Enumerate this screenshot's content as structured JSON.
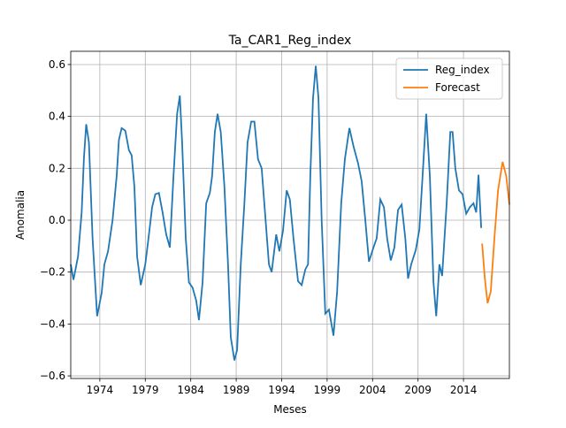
{
  "chart_data": {
    "type": "line",
    "title": "Ta_CAR1_Reg_index",
    "x_label": "Meses",
    "y_label": "Anomalia",
    "xlim": [
      1970.8,
      2019.05
    ],
    "ylim": [
      -0.61,
      0.651
    ],
    "xticks": [
      1974,
      1979,
      1984,
      1989,
      1994,
      1999,
      2004,
      2009,
      2014
    ],
    "yticks": [
      {
        "value": -0.6,
        "label": "−0.6"
      },
      {
        "value": -0.4,
        "label": "−0.4"
      },
      {
        "value": -0.2,
        "label": "−0.2"
      },
      {
        "value": 0,
        "label": "0.0"
      },
      0.2,
      0.4,
      0.6
    ],
    "grid": true,
    "legend": "upper right",
    "series": [
      {
        "name": "Reg_index",
        "color": "#1f77b4",
        "x": [
          1970.8,
          1971.1,
          1971.6,
          1972.0,
          1972.25,
          1972.5,
          1972.8,
          1973.2,
          1973.7,
          1974.2,
          1974.5,
          1974.9,
          1975.4,
          1975.85,
          1976.1,
          1976.4,
          1976.8,
          1977.2,
          1977.5,
          1977.8,
          1978.1,
          1978.5,
          1979.0,
          1979.35,
          1979.75,
          1980.1,
          1980.5,
          1980.9,
          1981.3,
          1981.7,
          1982.1,
          1982.5,
          1982.8,
          1983.05,
          1983.45,
          1983.8,
          1984.2,
          1984.6,
          1984.9,
          1985.3,
          1985.7,
          1986.1,
          1986.35,
          1986.65,
          1986.95,
          1987.3,
          1987.7,
          1988.1,
          1988.4,
          1988.8,
          1989.1,
          1989.5,
          1989.9,
          1990.25,
          1990.65,
          1991.0,
          1991.4,
          1991.8,
          1992.2,
          1992.6,
          1992.9,
          1993.4,
          1993.75,
          1994.15,
          1994.55,
          1994.9,
          1995.3,
          1995.8,
          1996.2,
          1996.6,
          1996.9,
          1997.15,
          1997.45,
          1997.75,
          1998.05,
          1998.4,
          1998.8,
          1999.2,
          1999.7,
          2000.1,
          2000.55,
          2000.95,
          2001.45,
          2001.9,
          2002.4,
          2002.8,
          2003.2,
          2003.6,
          2004.1,
          2004.45,
          2004.85,
          2005.25,
          2005.6,
          2006.0,
          2006.4,
          2006.8,
          2007.2,
          2007.6,
          2007.9,
          2008.25,
          2008.75,
          2009.15,
          2009.5,
          2009.9,
          2010.3,
          2010.7,
          2011.0,
          2011.35,
          2011.65,
          2012.15,
          2012.55,
          2012.8,
          2013.1,
          2013.5,
          2013.9,
          2014.3,
          2014.7,
          2015.1,
          2015.4,
          2015.65,
          2015.95
        ],
        "values": [
          -0.17,
          -0.23,
          -0.14,
          0.03,
          0.24,
          0.37,
          0.3,
          -0.07,
          -0.37,
          -0.28,
          -0.17,
          -0.12,
          0.0,
          0.17,
          0.31,
          0.355,
          0.345,
          0.27,
          0.25,
          0.13,
          -0.14,
          -0.25,
          -0.17,
          -0.07,
          0.05,
          0.1,
          0.105,
          0.03,
          -0.055,
          -0.105,
          0.17,
          0.41,
          0.48,
          0.3,
          -0.07,
          -0.24,
          -0.26,
          -0.31,
          -0.385,
          -0.24,
          0.065,
          0.105,
          0.17,
          0.34,
          0.41,
          0.34,
          0.13,
          -0.17,
          -0.45,
          -0.54,
          -0.5,
          -0.17,
          0.065,
          0.3,
          0.38,
          0.38,
          0.235,
          0.2,
          0.015,
          -0.17,
          -0.2,
          -0.055,
          -0.12,
          -0.04,
          0.115,
          0.08,
          -0.07,
          -0.235,
          -0.25,
          -0.19,
          -0.17,
          0.17,
          0.47,
          0.595,
          0.47,
          0.0,
          -0.36,
          -0.345,
          -0.445,
          -0.275,
          0.065,
          0.235,
          0.355,
          0.285,
          0.22,
          0.15,
          0.0,
          -0.16,
          -0.105,
          -0.07,
          0.08,
          0.05,
          -0.07,
          -0.155,
          -0.105,
          0.04,
          0.06,
          -0.07,
          -0.225,
          -0.17,
          -0.115,
          -0.035,
          0.17,
          0.41,
          0.17,
          -0.24,
          -0.37,
          -0.17,
          -0.215,
          0.065,
          0.34,
          0.34,
          0.2,
          0.115,
          0.1,
          0.025,
          0.05,
          0.065,
          0.03,
          0.175,
          -0.03
        ]
      },
      {
        "name": "Forecast",
        "color": "#ff7f0e",
        "x": [
          2016.05,
          2016.35,
          2016.65,
          2017.0,
          2017.4,
          2017.8,
          2018.3,
          2018.7,
          2019.05
        ],
        "values": [
          -0.09,
          -0.225,
          -0.32,
          -0.275,
          -0.07,
          0.115,
          0.225,
          0.17,
          0.06
        ]
      }
    ]
  }
}
